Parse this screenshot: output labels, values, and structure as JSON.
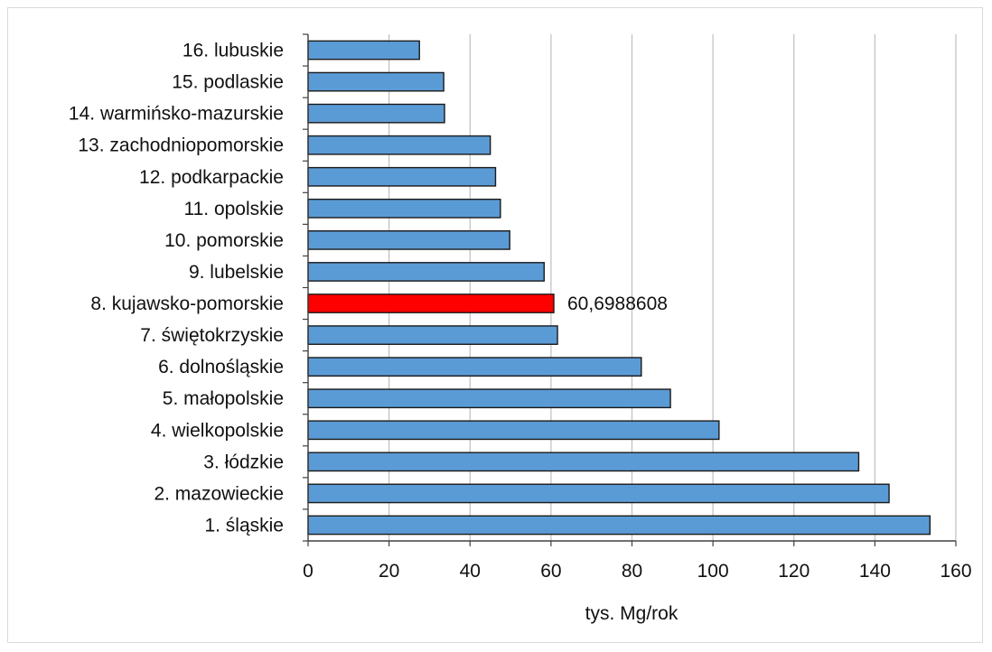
{
  "chart_data": {
    "type": "bar",
    "orientation": "horizontal",
    "title": "",
    "xlabel": "tys. Mg/rok",
    "ylabel": "",
    "xlim": [
      0,
      160
    ],
    "x_ticks": [
      0,
      20,
      40,
      60,
      80,
      100,
      120,
      140,
      160
    ],
    "grid": "vertical",
    "categories": [
      "16. lubuskie",
      "15. podlaskie",
      "14. warmińsko-mazurskie",
      "13. zachodniopomorskie",
      "12. podkarpackie",
      "11. opolskie",
      "10. pomorskie",
      "9. lubelskie",
      "8. kujawsko-pomorskie",
      "7. świętokrzyskie",
      "6. dolnośląskie",
      "5. małopolskie",
      "4. wielkopolskie",
      "3. łódzkie",
      "2. mazowieckie",
      "1. śląskie"
    ],
    "values": [
      27.5,
      33.5,
      33.7,
      45,
      46.3,
      47.5,
      49.8,
      58.3,
      60.6988608,
      61.6,
      82.3,
      89.5,
      101.5,
      136,
      143.5,
      153.6
    ],
    "highlight_index": 8,
    "data_labels": [
      {
        "index": 8,
        "text": "60,6988608"
      }
    ],
    "colors": {
      "bar": "#5b9bd5",
      "bar_highlight": "#ff0000",
      "bar_border": "#1a1a1a",
      "grid": "#bfbfbf",
      "axis": "#404040"
    }
  }
}
